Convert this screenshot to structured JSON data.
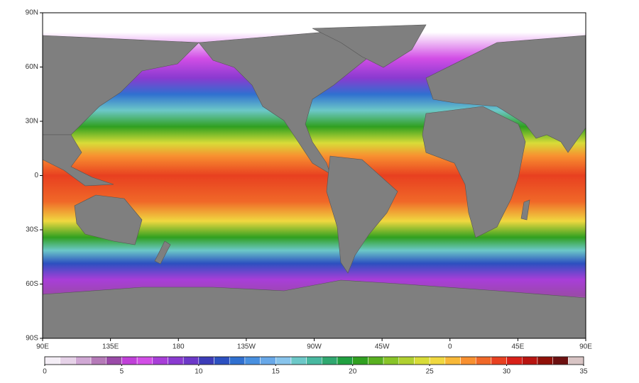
{
  "map": {
    "latlim": [
      -90,
      90
    ],
    "lonlim": [
      90,
      450
    ],
    "lat_ticks": [
      {
        "value": 90,
        "label": "90N"
      },
      {
        "value": 60,
        "label": "60N"
      },
      {
        "value": 30,
        "label": "30N"
      },
      0,
      {
        "value": -30,
        "label": "30S"
      },
      {
        "value": -60,
        "label": "60S"
      },
      {
        "value": -90,
        "label": "90S"
      }
    ],
    "lon_ticks": [
      {
        "value": 90,
        "label": "90E"
      },
      {
        "value": 135,
        "label": "135E"
      },
      180,
      {
        "value": 225,
        "label": "135W"
      },
      {
        "value": 270,
        "label": "90W"
      },
      {
        "value": 315,
        "label": "45W"
      },
      {
        "value": 360,
        "label": "0"
      },
      {
        "value": 405,
        "label": "45E"
      },
      {
        "value": 450,
        "label": "90E"
      }
    ]
  },
  "colorbar": {
    "range": [
      0,
      35
    ],
    "ticks": [
      0,
      5,
      10,
      15,
      20,
      25,
      30,
      35
    ],
    "colors": [
      "#f4eef6",
      "#e6d2e8",
      "#d0a8d4",
      "#b57ab8",
      "#9a4aa8",
      "#c040d8",
      "#d24ee6",
      "#a83ed8",
      "#8a3ad0",
      "#6c38c8",
      "#3c3cb8",
      "#2c50c0",
      "#3070d0",
      "#4890e0",
      "#68a8e8",
      "#88c4ec",
      "#6cc8c8",
      "#48b8a0",
      "#30a870",
      "#20a040",
      "#30a020",
      "#58b020",
      "#88c428",
      "#b0d030",
      "#d8dc38",
      "#f0d840",
      "#f8b838",
      "#f89030",
      "#f06828",
      "#e84020",
      "#d82018",
      "#b81410",
      "#901008",
      "#6c1010",
      "#d8c4c4"
    ]
  }
}
